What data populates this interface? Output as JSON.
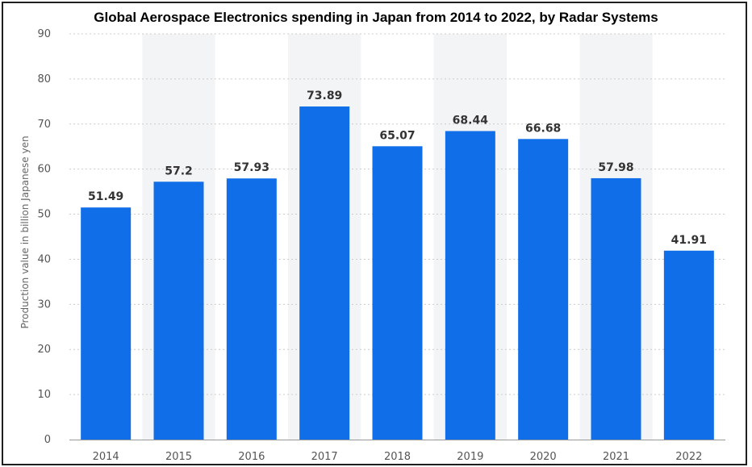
{
  "chart_data": {
    "type": "bar",
    "title": "Global Aerospace Electronics spending in Japan from 2014 to 2022, by Radar Systems",
    "xlabel": "",
    "ylabel": "Production value in billion Japanese yen",
    "categories": [
      "2014",
      "2015",
      "2016",
      "2017",
      "2018",
      "2019",
      "2020",
      "2021",
      "2022"
    ],
    "values": [
      51.49,
      57.2,
      57.93,
      73.89,
      65.07,
      68.44,
      66.68,
      57.98,
      41.91
    ],
    "data_labels": [
      "51.49",
      "57.2",
      "57.93",
      "73.89",
      "65.07",
      "68.44",
      "66.68",
      "57.98",
      "41.91"
    ],
    "ylim": [
      0,
      90
    ],
    "yticks": [
      "0",
      "10",
      "20",
      "30",
      "40",
      "50",
      "60",
      "70",
      "80",
      "90"
    ],
    "grid": true,
    "legend": "none",
    "colors": {
      "bar": "#0f6ee8",
      "grid": "#cccccc",
      "band": "#f3f4f6"
    }
  }
}
